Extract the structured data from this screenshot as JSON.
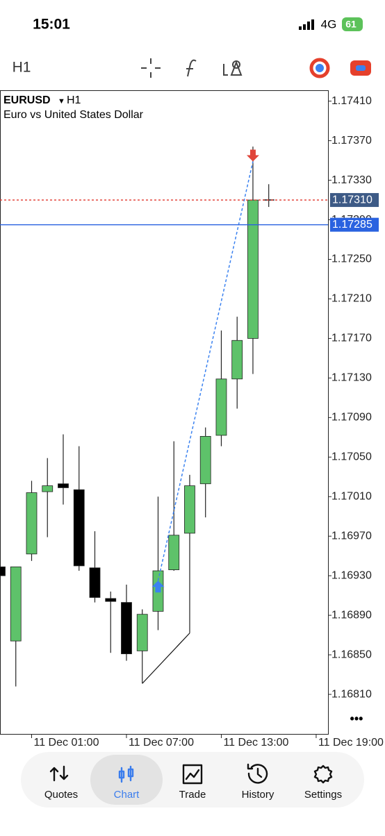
{
  "status_bar": {
    "time": "15:01",
    "network": "4G",
    "battery": "61"
  },
  "toolbar": {
    "timeframe": "H1"
  },
  "chart": {
    "type": "candlestick",
    "symbol": "EURUSD",
    "timeframe": "H1",
    "description": "Euro vs United States Dollar",
    "ylim": [
      1.1677,
      1.17421
    ],
    "xlim": [
      0,
      20.75
    ],
    "yticks": [
      {
        "value": 1.1741,
        "label": "1.17410"
      },
      {
        "value": 1.1737,
        "label": "1.17370"
      },
      {
        "value": 1.1733,
        "label": "1.17330"
      },
      {
        "value": 1.1729,
        "label": "1.17290"
      },
      {
        "value": 1.1725,
        "label": "1.17250"
      },
      {
        "value": 1.1721,
        "label": "1.17210"
      },
      {
        "value": 1.1717,
        "label": "1.17170"
      },
      {
        "value": 1.1713,
        "label": "1.17130"
      },
      {
        "value": 1.1709,
        "label": "1.17090"
      },
      {
        "value": 1.1705,
        "label": "1.17050"
      },
      {
        "value": 1.1701,
        "label": "1.17010"
      },
      {
        "value": 1.1697,
        "label": "1.16970"
      },
      {
        "value": 1.1693,
        "label": "1.16930"
      },
      {
        "value": 1.1689,
        "label": "1.16890"
      },
      {
        "value": 1.1685,
        "label": "1.16850"
      },
      {
        "value": 1.1681,
        "label": "1.16810"
      }
    ],
    "xticks": [
      {
        "value": 2,
        "label": "11 Dec 01:00"
      },
      {
        "value": 8,
        "label": "11 Dec 07:00"
      },
      {
        "value": 14,
        "label": "11 Dec 13:00"
      },
      {
        "value": 20,
        "label": "11 Dec 19:00"
      }
    ],
    "up_color": "#5ec26a",
    "down_color": "#000000",
    "open": [
      1.16939,
      1.16864,
      1.16952,
      1.17015,
      1.17023,
      1.17017,
      1.16938,
      1.16907,
      1.16903,
      1.16854,
      1.16894,
      1.16936,
      1.16973,
      1.17023,
      1.17072,
      1.17129,
      1.1717,
      1.1731
    ],
    "high": [
      1.16941,
      1.16939,
      1.17026,
      1.17049,
      1.17073,
      1.17061,
      1.16975,
      1.16914,
      1.16921,
      1.16896,
      1.1701,
      1.17066,
      1.17032,
      1.1708,
      1.17178,
      1.17192,
      1.17364,
      1.17326
    ],
    "low": [
      1.16928,
      1.16818,
      1.16945,
      1.16969,
      1.17002,
      1.16935,
      1.16903,
      1.16852,
      1.16844,
      1.16821,
      1.16875,
      1.16935,
      1.16872,
      1.16989,
      1.17061,
      1.17099,
      1.17134,
      1.17303
    ],
    "close": [
      1.1693,
      1.16939,
      1.17014,
      1.17021,
      1.17019,
      1.1694,
      1.16908,
      1.16904,
      1.16851,
      1.16891,
      1.16935,
      1.16971,
      1.17021,
      1.17071,
      1.17129,
      1.17168,
      1.1731,
      1.1731
    ],
    "price_lines": [
      {
        "value": 1.1731,
        "label": "1.17310",
        "color": "#e0352b",
        "style": "dotted",
        "box": "#3d5a86"
      },
      {
        "value": 1.17285,
        "label": "1.17285",
        "color": "#2a62e0",
        "style": "solid",
        "box": "#2a62e0"
      }
    ],
    "buy": {
      "index": 10,
      "price": 1.16925,
      "color": "#3b82f0"
    },
    "sell": {
      "index": 16,
      "price": 1.17349,
      "color": "#e0453a"
    },
    "more": "•••"
  },
  "nav": {
    "tabs": [
      "Quotes",
      "Chart",
      "Trade",
      "History",
      "Settings"
    ],
    "active": 1
  }
}
